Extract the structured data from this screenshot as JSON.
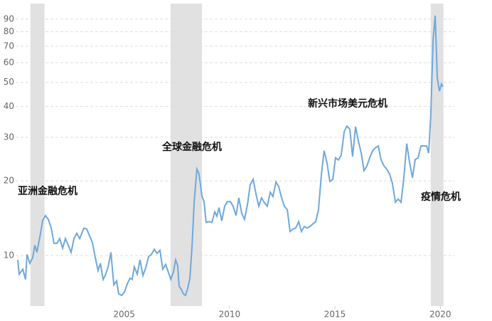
{
  "chart_data": {
    "type": "line",
    "log_y": true,
    "grid": true,
    "color": "#6fa8dc",
    "shade_color": "#e1e1e1",
    "xlim": [
      1999.85,
      2020.7
    ],
    "ylim": [
      6.25,
      104
    ],
    "xticks": [
      2005,
      2010,
      2015,
      2020
    ],
    "yticks": [
      10,
      20,
      30,
      40,
      50,
      60,
      70,
      80,
      90
    ],
    "shaded_ranges": [
      [
        2000.55,
        2001.22
      ],
      [
        2007.2,
        2008.69
      ],
      [
        2019.55,
        2020.15
      ]
    ],
    "annotations": [
      "亚洲金融危机",
      "全球金融危机",
      "新兴市场美元危机",
      "疫情危机"
    ],
    "x": [
      1999.95,
      2000.02,
      2000.19,
      2000.32,
      2000.39,
      2000.52,
      2000.66,
      2000.76,
      2000.86,
      2001.03,
      2001.13,
      2001.26,
      2001.4,
      2001.54,
      2001.67,
      2001.81,
      2001.94,
      2002.08,
      2002.21,
      2002.35,
      2002.48,
      2002.62,
      2002.75,
      2002.89,
      2003.09,
      2003.22,
      2003.36,
      2003.49,
      2003.63,
      2003.76,
      2003.87,
      2004.0,
      2004.1,
      2004.24,
      2004.37,
      2004.51,
      2004.64,
      2004.74,
      2004.88,
      2005.01,
      2005.15,
      2005.28,
      2005.38,
      2005.48,
      2005.62,
      2005.75,
      2005.89,
      2006.02,
      2006.16,
      2006.29,
      2006.43,
      2006.56,
      2006.7,
      2006.83,
      2006.97,
      2007.07,
      2007.21,
      2007.34,
      2007.44,
      2007.54,
      2007.61,
      2007.71,
      2007.81,
      2007.91,
      2008.02,
      2008.12,
      2008.22,
      2008.32,
      2008.45,
      2008.55,
      2008.69,
      2008.79,
      2008.89,
      2009.03,
      2009.16,
      2009.3,
      2009.4,
      2009.5,
      2009.63,
      2009.77,
      2009.9,
      2010.04,
      2010.17,
      2010.31,
      2010.44,
      2010.58,
      2010.71,
      2010.85,
      2010.98,
      2011.12,
      2011.25,
      2011.39,
      2011.52,
      2011.66,
      2011.79,
      2011.93,
      2012.06,
      2012.2,
      2012.33,
      2012.47,
      2012.6,
      2012.74,
      2012.87,
      2013.01,
      2013.14,
      2013.28,
      2013.41,
      2013.55,
      2013.68,
      2013.82,
      2013.95,
      2014.09,
      2014.22,
      2014.36,
      2014.49,
      2014.63,
      2014.76,
      2014.9,
      2015.03,
      2015.17,
      2015.3,
      2015.44,
      2015.57,
      2015.71,
      2015.84,
      2015.98,
      2016.11,
      2016.25,
      2016.38,
      2016.52,
      2016.65,
      2016.79,
      2016.92,
      2017.06,
      2017.19,
      2017.33,
      2017.46,
      2017.6,
      2017.73,
      2017.87,
      2018.0,
      2018.14,
      2018.27,
      2018.41,
      2018.54,
      2018.68,
      2018.81,
      2018.95,
      2019.08,
      2019.22,
      2019.35,
      2019.45,
      2019.55,
      2019.66,
      2019.76,
      2019.86,
      2019.96,
      2020.06,
      2020.13
    ],
    "values": [
      9.6,
      8.4,
      8.8,
      8.0,
      10.1,
      9.3,
      9.8,
      11.0,
      10.3,
      12.3,
      13.8,
      14.5,
      14.0,
      12.9,
      11.2,
      11.2,
      11.7,
      10.7,
      11.7,
      11.0,
      10.3,
      11.7,
      12.3,
      11.7,
      12.9,
      12.8,
      12.0,
      11.3,
      9.8,
      8.7,
      9.3,
      8.0,
      8.3,
      9.0,
      10.3,
      7.6,
      7.9,
      7.0,
      6.9,
      7.1,
      7.7,
      8.1,
      8.0,
      9.0,
      8.4,
      9.6,
      8.3,
      8.9,
      9.9,
      10.1,
      10.6,
      10.2,
      10.5,
      8.8,
      9.2,
      8.7,
      8.0,
      8.6,
      9.6,
      9.1,
      7.5,
      7.3,
      7.0,
      6.9,
      7.4,
      8.1,
      10.9,
      16.4,
      22.3,
      21.4,
      17.4,
      16.5,
      13.6,
      13.7,
      13.6,
      15.0,
      14.4,
      15.6,
      13.8,
      15.8,
      16.5,
      16.5,
      15.8,
      14.5,
      17.1,
      14.8,
      14.0,
      16.0,
      19.3,
      20.3,
      17.8,
      15.8,
      17.1,
      16.3,
      15.8,
      18.0,
      17.3,
      19.8,
      19.0,
      17.1,
      15.8,
      15.3,
      12.5,
      12.8,
      12.9,
      13.7,
      12.5,
      13.1,
      12.9,
      13.1,
      13.4,
      13.7,
      15.3,
      21.3,
      26.5,
      23.5,
      19.9,
      20.3,
      24.8,
      24.3,
      25.4,
      31.6,
      33.3,
      32.3,
      25.1,
      33.1,
      29.0,
      25.9,
      22.0,
      23.0,
      24.8,
      26.5,
      27.2,
      27.7,
      24.3,
      23.0,
      22.3,
      21.3,
      19.5,
      16.4,
      16.9,
      16.4,
      20.6,
      28.3,
      23.8,
      20.6,
      24.4,
      24.8,
      27.7,
      27.7,
      27.7,
      25.9,
      36.8,
      74.7,
      93.0,
      52.0,
      46.1,
      49.3,
      48.0
    ]
  }
}
